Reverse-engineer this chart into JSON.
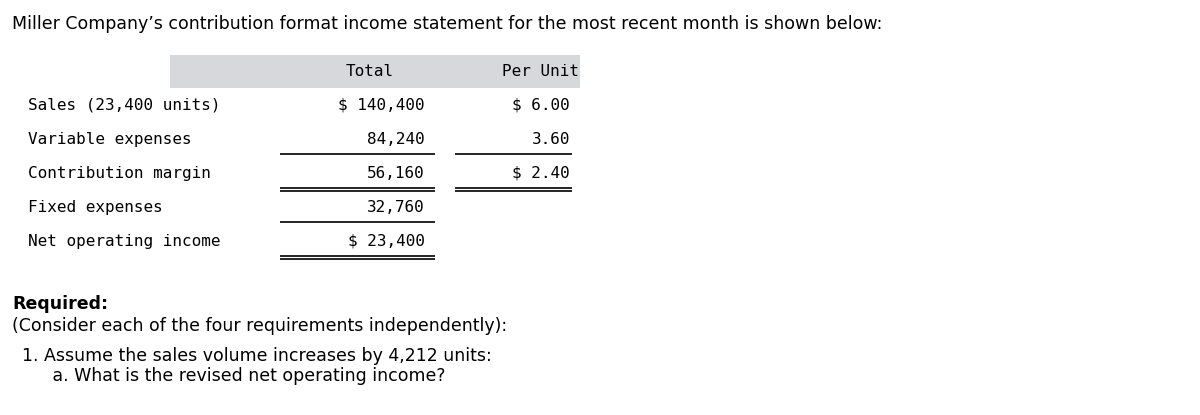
{
  "title": "Miller Company’s contribution format income statement for the most recent month is shown below:",
  "rows": [
    {
      "label": "Sales (23,400 units)",
      "total": "$ 140,400",
      "per_unit": "$ 6.00"
    },
    {
      "label": "Variable expenses",
      "total": "84,240",
      "per_unit": "3.60"
    },
    {
      "label": "Contribution margin",
      "total": "56,160",
      "per_unit": "$ 2.40"
    },
    {
      "label": "Fixed expenses",
      "total": "32,760",
      "per_unit": ""
    },
    {
      "label": "Net operating income",
      "total": "$ 23,400",
      "per_unit": ""
    }
  ],
  "required_label": "Required:",
  "consider_text": "(Consider each of the four requirements independently):",
  "item1": "1. Assume the sales volume increases by 4,212 units:",
  "item1a": "   a. What is the revised net operating income?",
  "bg_color": "#ffffff",
  "header_bg": "#d6d8db",
  "table_font": "monospace",
  "title_font": "DejaVu Sans",
  "title_fontsize": 12.5,
  "table_fontsize": 11.5,
  "body_fontsize": 12.5
}
